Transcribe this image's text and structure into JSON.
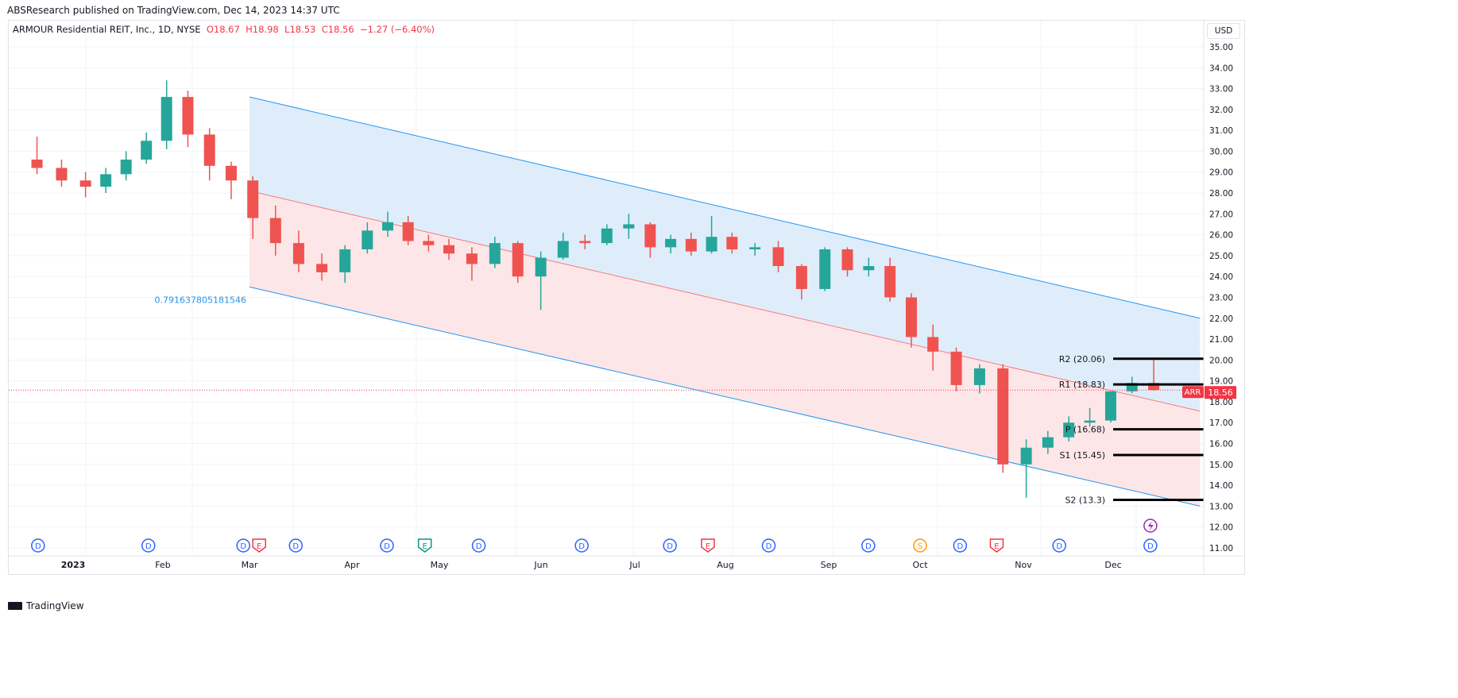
{
  "publisher_line": "ABSResearch published on TradingView.com, Dec 14, 2023 14:37 UTC",
  "legend": {
    "symbol": "ARMOUR Residential REIT, Inc., 1D, NYSE",
    "o": "O18.67",
    "h": "H18.98",
    "l": "L18.53",
    "c": "C18.56",
    "change": "−1.27 (−6.40%)"
  },
  "currency_button": "USD",
  "brand": "TradingView",
  "colors": {
    "up": "#26a69a",
    "down": "#ef5350",
    "channel_line": "#2196f3",
    "channel_upper_fill": "#dcebfb",
    "channel_lower_fill": "#fde3e4",
    "mid_line": "#f77c80",
    "pivot_line": "#000000",
    "price_label": "#f23645"
  },
  "chart_data": {
    "type": "candlestick",
    "note_interval": "1D (shown here aggregated weekly, approximate)",
    "ylim": [
      11,
      35.5
    ],
    "y_ticks": [
      "35.00",
      "34.00",
      "33.00",
      "32.00",
      "31.00",
      "30.00",
      "29.00",
      "28.00",
      "27.00",
      "26.00",
      "25.00",
      "24.00",
      "23.00",
      "22.00",
      "21.00",
      "20.00",
      "19.00",
      "18.00",
      "17.00",
      "16.00",
      "15.00",
      "14.00",
      "13.00",
      "12.00",
      "11.00"
    ],
    "x_ticks": [
      {
        "label": "2023",
        "date": "2023-01-01"
      },
      {
        "label": "Feb",
        "date": "2023-02-01"
      },
      {
        "label": "Mar",
        "date": "2023-03-01"
      },
      {
        "label": "Apr",
        "date": "2023-04-01"
      },
      {
        "label": "May",
        "date": "2023-05-01"
      },
      {
        "label": "Jun",
        "date": "2023-06-01"
      },
      {
        "label": "Jul",
        "date": "2023-07-01"
      },
      {
        "label": "Aug",
        "date": "2023-08-01"
      },
      {
        "label": "Sep",
        "date": "2023-09-01"
      },
      {
        "label": "Oct",
        "date": "2023-10-01"
      },
      {
        "label": "Nov",
        "date": "2023-11-01"
      },
      {
        "label": "Dec",
        "date": "2023-12-01"
      }
    ],
    "grid": true,
    "candles": [
      [
        "2022-12-19",
        29.6,
        30.7,
        28.9,
        29.2
      ],
      [
        "2022-12-26",
        29.2,
        29.6,
        28.3,
        28.6
      ],
      [
        "2023-01-02",
        28.6,
        29.0,
        27.8,
        28.3
      ],
      [
        "2023-01-09",
        28.3,
        29.2,
        28.0,
        28.9
      ],
      [
        "2023-01-16",
        28.9,
        30.0,
        28.6,
        29.6
      ],
      [
        "2023-01-23",
        29.6,
        30.9,
        29.4,
        30.5
      ],
      [
        "2023-01-30",
        30.5,
        33.4,
        30.1,
        32.6
      ],
      [
        "2023-02-06",
        32.6,
        32.9,
        30.2,
        30.8
      ],
      [
        "2023-02-13",
        30.8,
        31.1,
        28.6,
        29.3
      ],
      [
        "2023-02-20",
        29.3,
        29.5,
        27.7,
        28.6
      ],
      [
        "2023-02-27",
        28.6,
        28.8,
        25.8,
        26.8
      ],
      [
        "2023-03-06",
        26.8,
        27.4,
        25.0,
        25.6
      ],
      [
        "2023-03-13",
        25.6,
        26.2,
        24.2,
        24.6
      ],
      [
        "2023-03-20",
        24.6,
        25.1,
        23.8,
        24.2
      ],
      [
        "2023-03-27",
        24.2,
        25.5,
        23.7,
        25.3
      ],
      [
        "2023-04-03",
        25.3,
        26.6,
        25.1,
        26.2
      ],
      [
        "2023-04-10",
        26.2,
        27.1,
        25.9,
        26.6
      ],
      [
        "2023-04-17",
        26.6,
        26.9,
        25.5,
        25.7
      ],
      [
        "2023-04-24",
        25.7,
        26.0,
        25.2,
        25.5
      ],
      [
        "2023-05-01",
        25.5,
        25.8,
        24.8,
        25.1
      ],
      [
        "2023-05-08",
        25.1,
        25.4,
        23.8,
        24.6
      ],
      [
        "2023-05-15",
        24.6,
        25.9,
        24.4,
        25.6
      ],
      [
        "2023-05-22",
        25.6,
        25.7,
        23.7,
        24.0
      ],
      [
        "2023-05-29",
        24.0,
        25.2,
        22.4,
        24.9
      ],
      [
        "2023-06-05",
        24.9,
        26.1,
        24.8,
        25.7
      ],
      [
        "2023-06-12",
        25.7,
        26.0,
        25.3,
        25.6
      ],
      [
        "2023-06-19",
        25.6,
        26.5,
        25.5,
        26.3
      ],
      [
        "2023-06-26",
        26.3,
        27.0,
        25.8,
        26.5
      ],
      [
        "2023-07-03",
        26.5,
        26.6,
        24.9,
        25.4
      ],
      [
        "2023-07-10",
        25.4,
        26.0,
        25.1,
        25.8
      ],
      [
        "2023-07-17",
        25.8,
        26.1,
        25.0,
        25.2
      ],
      [
        "2023-07-24",
        25.2,
        26.9,
        25.1,
        25.9
      ],
      [
        "2023-07-31",
        25.9,
        26.1,
        25.1,
        25.3
      ],
      [
        "2023-08-07",
        25.3,
        25.6,
        25.0,
        25.4
      ],
      [
        "2023-08-14",
        25.4,
        25.7,
        24.2,
        24.5
      ],
      [
        "2023-08-21",
        24.5,
        24.6,
        22.9,
        23.4
      ],
      [
        "2023-08-28",
        23.4,
        25.4,
        23.3,
        25.3
      ],
      [
        "2023-09-04",
        25.3,
        25.4,
        24.0,
        24.3
      ],
      [
        "2023-09-11",
        24.3,
        24.9,
        24.0,
        24.5
      ],
      [
        "2023-09-18",
        24.5,
        24.9,
        22.8,
        23.0
      ],
      [
        "2023-09-25",
        23.0,
        23.2,
        20.6,
        21.1
      ],
      [
        "2023-10-02",
        21.1,
        21.7,
        19.5,
        20.4
      ],
      [
        "2023-10-09",
        20.4,
        20.6,
        18.5,
        18.8
      ],
      [
        "2023-10-16",
        18.8,
        19.8,
        18.4,
        19.6
      ],
      [
        "2023-10-23",
        19.6,
        19.8,
        14.6,
        15.0
      ],
      [
        "2023-10-30",
        15.0,
        16.2,
        13.4,
        15.8
      ],
      [
        "2023-11-06",
        15.8,
        16.6,
        15.5,
        16.3
      ],
      [
        "2023-11-13",
        16.3,
        17.3,
        16.1,
        17.0
      ],
      [
        "2023-11-20",
        17.0,
        17.7,
        16.8,
        17.1
      ],
      [
        "2023-11-27",
        17.1,
        18.5,
        17.0,
        18.5
      ],
      [
        "2023-12-04",
        18.5,
        19.2,
        18.4,
        18.9
      ],
      [
        "2023-12-11",
        18.9,
        20.06,
        18.53,
        18.56
      ]
    ],
    "last_price": {
      "symbol": "ARR",
      "value": "18.56"
    },
    "channel": {
      "label": "0.791637805181546",
      "start_date": "2023-03-01",
      "end_date": "2023-12-29",
      "upper": [
        32.6,
        22.0
      ],
      "middle": [
        28.1,
        17.55
      ],
      "lower": [
        23.5,
        13.0
      ]
    },
    "pivots": [
      {
        "label": "R2 (20.06)",
        "value": 20.06
      },
      {
        "label": "R1 (18.83)",
        "value": 18.83
      },
      {
        "label": "P (16.68)",
        "value": 16.68
      },
      {
        "label": "S1 (15.45)",
        "value": 15.45
      },
      {
        "label": "S2 (13.3)",
        "value": 13.3
      }
    ],
    "pivot_start_date": "2023-12-01",
    "events": [
      {
        "type": "D",
        "date": "2022-12-22",
        "color": "#2962ff"
      },
      {
        "type": "D",
        "date": "2023-01-27",
        "color": "#2962ff"
      },
      {
        "type": "D",
        "date": "2023-02-27",
        "color": "#2962ff"
      },
      {
        "type": "E",
        "date": "2023-02-28",
        "color": "#f23645"
      },
      {
        "type": "D",
        "date": "2023-03-15",
        "color": "#2962ff"
      },
      {
        "type": "D",
        "date": "2023-04-13",
        "color": "#2962ff"
      },
      {
        "type": "E",
        "date": "2023-04-26",
        "color": "#089981"
      },
      {
        "type": "D",
        "date": "2023-05-13",
        "color": "#2962ff"
      },
      {
        "type": "D",
        "date": "2023-06-14",
        "color": "#2962ff"
      },
      {
        "type": "D",
        "date": "2023-07-13",
        "color": "#2962ff"
      },
      {
        "type": "E",
        "date": "2023-07-26",
        "color": "#f23645"
      },
      {
        "type": "D",
        "date": "2023-08-14",
        "color": "#2962ff"
      },
      {
        "type": "D",
        "date": "2023-09-14",
        "color": "#2962ff"
      },
      {
        "type": "S",
        "date": "2023-10-01",
        "color": "#ff9800"
      },
      {
        "type": "D",
        "date": "2023-10-13",
        "color": "#2962ff"
      },
      {
        "type": "E",
        "date": "2023-10-24",
        "color": "#f23645"
      },
      {
        "type": "D",
        "date": "2023-11-13",
        "color": "#2962ff"
      },
      {
        "type": "D",
        "date": "2023-12-13",
        "color": "#2962ff"
      }
    ],
    "split_marker": {
      "date": "2023-12-13",
      "color": "#9c27b0"
    }
  }
}
